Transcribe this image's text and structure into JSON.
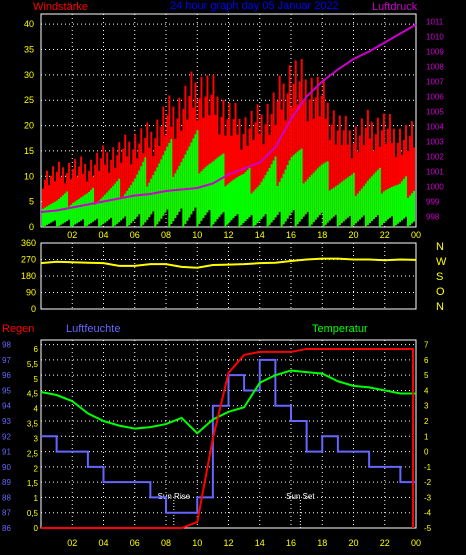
{
  "colors": {
    "background": "#000000",
    "frame": "#ffffff",
    "grid": "#ffffff",
    "wind_label": "#ff0000",
    "gust": "#ff0000",
    "wind": "#00ff00",
    "pressure": "#cc00cc",
    "title": "#0000ff",
    "direction": "#ffff00",
    "rain": "#ff0000",
    "humidity": "#6666ff",
    "temperature": "#00ff00",
    "axis_text": "#ffff00",
    "sun_text": "#ffffff"
  },
  "hours": [
    "02",
    "04",
    "06",
    "08",
    "10",
    "12",
    "14",
    "16",
    "18",
    "20",
    "22",
    "00"
  ],
  "chart_data": [
    {
      "type": "bar",
      "title": "24 hour graph day 05 Januar 2022",
      "labels": {
        "left": "Windstärke",
        "right": "Luftdruck"
      },
      "left_axis": {
        "ticks": [
          "0",
          "5",
          "10",
          "15",
          "20",
          "25",
          "30",
          "35",
          "40"
        ],
        "ylim": [
          0,
          42
        ]
      },
      "right_axis": {
        "ticks": [
          "998",
          "999",
          "1000",
          "1001",
          "1002",
          "1003",
          "1004",
          "1005",
          "1006",
          "1007",
          "1008",
          "1009",
          "1010",
          "1011"
        ],
        "ylim": [
          997.3,
          1011.5
        ]
      },
      "x": [
        0,
        1,
        2,
        3,
        4,
        5,
        6,
        7,
        8,
        9,
        10,
        11,
        12,
        13,
        14,
        15,
        16,
        17,
        18,
        19,
        20,
        21,
        22,
        23,
        24
      ],
      "series": [
        {
          "key": "gust",
          "style": "bars",
          "values": [
            10,
            11,
            12,
            12,
            14,
            15,
            17,
            18,
            22,
            24,
            28,
            26,
            22,
            20,
            21,
            24,
            30,
            28,
            26,
            20,
            18,
            20,
            20,
            18,
            18
          ]
        },
        {
          "key": "wind",
          "style": "bars",
          "values": [
            6,
            6,
            7,
            7,
            8,
            9,
            11,
            14,
            16,
            17,
            18,
            15,
            13,
            11,
            11,
            13,
            16,
            14,
            13,
            11,
            10,
            11,
            11,
            9,
            10
          ]
        },
        {
          "key": "pressure",
          "style": "line",
          "values": [
            998.3,
            998.4,
            998.6,
            998.8,
            999.0,
            999.2,
            999.4,
            999.5,
            999.7,
            999.8,
            999.9,
            1000.2,
            1000.8,
            1001.2,
            1001.6,
            1002.6,
            1004.5,
            1006.0,
            1007.0,
            1007.8,
            1008.5,
            1009.0,
            1009.6,
            1010.2,
            1010.8
          ]
        }
      ]
    },
    {
      "type": "line",
      "labels": {
        "left": "",
        "right": ""
      },
      "left_axis": {
        "ticks": [
          "0",
          "90",
          "180",
          "270",
          "360"
        ],
        "ylim": [
          0,
          360
        ]
      },
      "right_axis": {
        "ticks": [
          "N",
          "W",
          "S",
          "O",
          "N"
        ]
      },
      "x": [
        0,
        1,
        2,
        3,
        4,
        5,
        6,
        7,
        8,
        9,
        10,
        11,
        12,
        13,
        14,
        15,
        16,
        17,
        18,
        19,
        20,
        21,
        22,
        23,
        24
      ],
      "series": [
        {
          "key": "direction",
          "values": [
            250,
            258,
            255,
            252,
            250,
            235,
            235,
            245,
            245,
            230,
            225,
            240,
            242,
            245,
            250,
            252,
            262,
            270,
            275,
            275,
            270,
            270,
            266,
            270,
            268
          ]
        }
      ]
    },
    {
      "type": "line",
      "labels": {
        "rain": "Regen",
        "humidity": "Luftfeuchte",
        "temperature": "Temperatur"
      },
      "left_axis_rain": {
        "ticks": [
          "0",
          "0,5",
          "1",
          "1,5",
          "2",
          "2,5",
          "3",
          "3,5",
          "4",
          "4,5",
          "5",
          "5,5",
          "6"
        ],
        "ylim": [
          0,
          6.3
        ]
      },
      "left_axis_humidity": {
        "ticks": [
          "86",
          "87",
          "88",
          "89",
          "90",
          "91",
          "92",
          "93",
          "94",
          "95",
          "96",
          "97",
          "98"
        ],
        "ylim": [
          86,
          98.3
        ]
      },
      "right_axis": {
        "ticks": [
          "7",
          "6",
          "5",
          "4",
          "3",
          "2",
          "1",
          "0",
          "-1",
          "-2",
          "-3",
          "-4",
          "-5"
        ],
        "ylim": [
          -5,
          7.3
        ]
      },
      "annotations": [
        {
          "label": "Sun Rise",
          "x": 8.5
        },
        {
          "label": "Sun Set",
          "x": 16.6
        }
      ],
      "x": [
        0,
        1,
        2,
        3,
        4,
        5,
        6,
        7,
        8,
        9,
        10,
        11,
        12,
        13,
        14,
        15,
        16,
        17,
        18,
        19,
        20,
        21,
        22,
        23,
        24
      ],
      "series": [
        {
          "key": "rain",
          "values": [
            0,
            0,
            0,
            0,
            0,
            0,
            0,
            0,
            0,
            0,
            0.2,
            3.0,
            5.2,
            5.8,
            5.9,
            5.9,
            5.9,
            6.0,
            6.0,
            6.0,
            6.0,
            6.0,
            6.0,
            6.0,
            0
          ]
        },
        {
          "key": "humidity",
          "values": [
            92,
            91,
            91,
            90,
            89,
            89,
            89,
            88,
            87,
            87,
            88,
            94,
            96,
            95,
            97,
            94,
            93,
            91,
            92,
            91,
            91,
            90,
            90,
            89,
            89
          ]
        },
        {
          "key": "temperature",
          "values": [
            3.9,
            3.7,
            3.3,
            2.5,
            2.0,
            1.7,
            1.5,
            1.6,
            1.8,
            2.2,
            1.2,
            2.1,
            2.6,
            2.9,
            4.5,
            5.0,
            5.3,
            5.2,
            5.1,
            4.6,
            4.3,
            4.2,
            4.0,
            3.8,
            3.8
          ]
        }
      ]
    }
  ]
}
